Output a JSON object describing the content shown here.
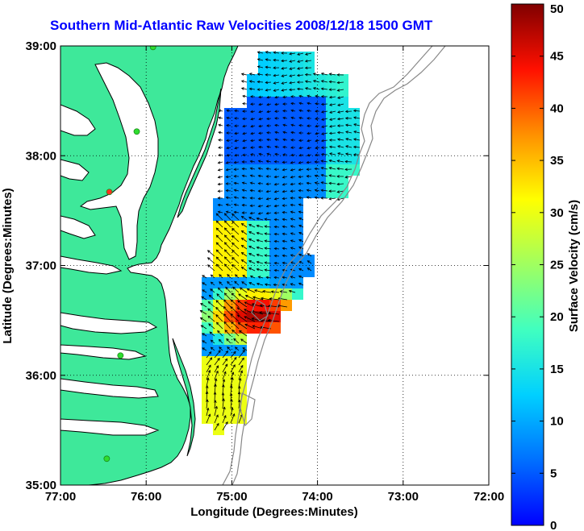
{
  "title": "Southern Mid-Atlantic Raw Velocities 2008/12/18 1500 GMT",
  "x_axis": {
    "label": "Longitude (Degrees:Minutes)",
    "ticks": [
      "77:00",
      "76:00",
      "75:00",
      "74:00",
      "73:00",
      "72:00"
    ]
  },
  "y_axis": {
    "label": "Latitude (Degrees:Minutes)",
    "ticks": [
      "39:00",
      "38:00",
      "37:00",
      "36:00",
      "35:00"
    ]
  },
  "colorbar": {
    "label": "Surface Velocity (cm/s)",
    "ticks": [
      "50",
      "45",
      "40",
      "35",
      "30",
      "25",
      "20",
      "15",
      "10",
      "5",
      "0"
    ],
    "min": 0,
    "max": 50,
    "colormap": "jet"
  },
  "colors": {
    "title": "#0000ff",
    "land": "#3ee89a",
    "coast": "#000000",
    "bathymetry": "#888888",
    "station": "#2fdd2f",
    "station_alert": "#ff3020",
    "grid": "#000000"
  },
  "map": {
    "lon_range": [
      -77,
      -72
    ],
    "lat_range": [
      35,
      39
    ],
    "grid": "dotted",
    "stations": [
      {
        "lon": -75.92,
        "lat": 38.99,
        "status": "ok"
      },
      {
        "lon": -76.11,
        "lat": 38.22,
        "status": "ok"
      },
      {
        "lon": -76.43,
        "lat": 37.67,
        "status": "alert"
      },
      {
        "lon": -76.3,
        "lat": 36.18,
        "status": "ok"
      },
      {
        "lon": -76.46,
        "lat": 35.24,
        "status": "ok"
      }
    ]
  }
}
